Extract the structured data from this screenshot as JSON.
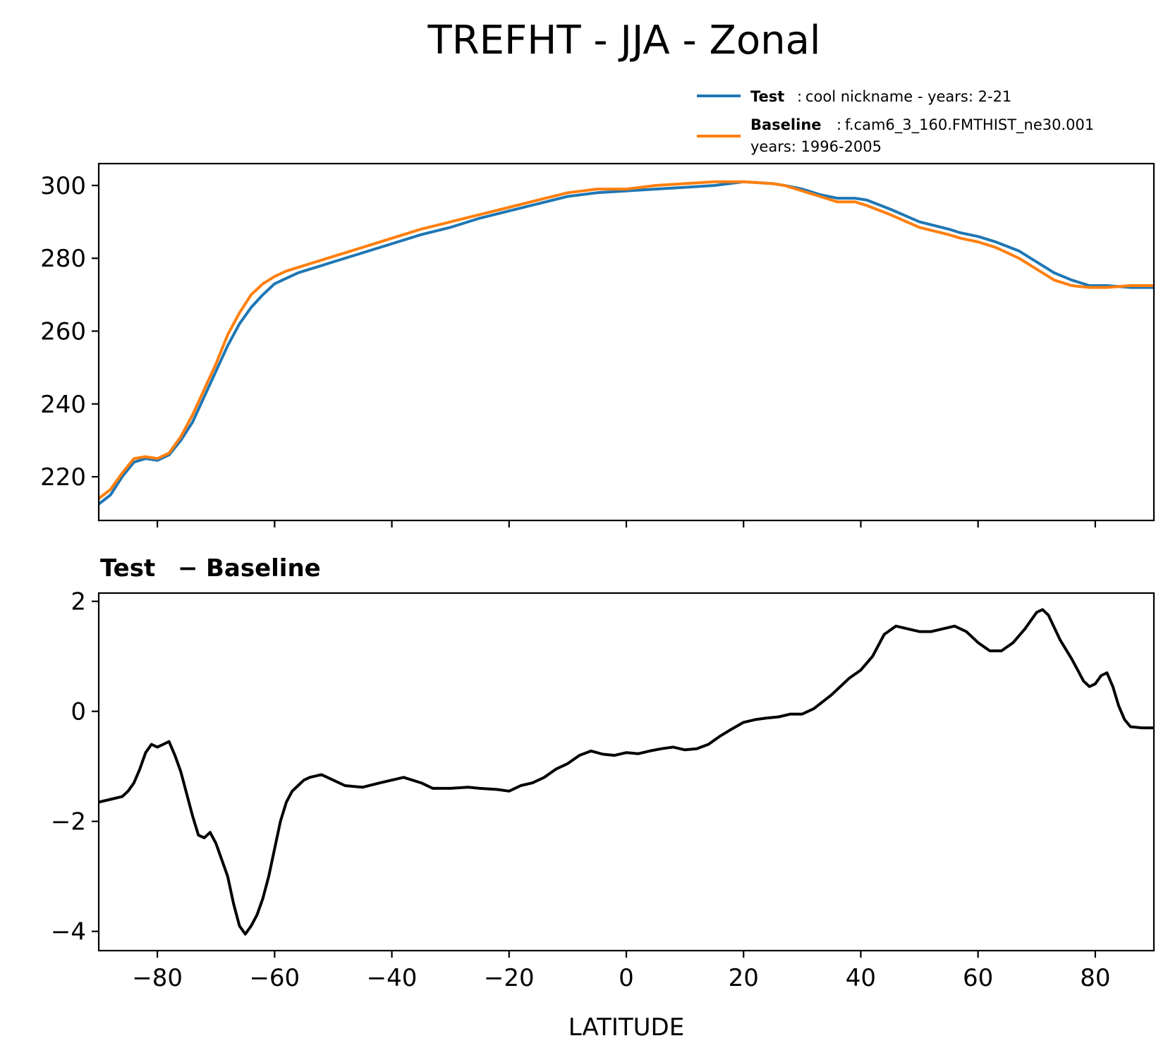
{
  "title": "TREFHT - JJA - Zonal",
  "legend": {
    "test_label": "Test",
    "test_desc": "cool nickname - years: 2-21",
    "baseline_label": "Baseline",
    "baseline_desc_line1": "f.cam6_3_160.FMTHIST_ne30.001",
    "baseline_desc_line2": "years: 1996-2005"
  },
  "diff_title_left": "Test",
  "diff_title_sep": "−",
  "diff_title_right": "Baseline",
  "xlabel": "LATITUDE",
  "colors": {
    "test": "#1f77b4",
    "baseline": "#ff7f0e",
    "diff": "#000000"
  },
  "chart_data": [
    {
      "type": "line",
      "panel": "top",
      "xlim": [
        -90,
        90
      ],
      "ylim": [
        208,
        306
      ],
      "yticks": [
        220,
        240,
        260,
        280,
        300
      ],
      "ytick_labels": [
        "220",
        "240",
        "260",
        "280",
        "300"
      ],
      "xticks": [
        -80,
        -60,
        -40,
        -20,
        0,
        20,
        40,
        60,
        80
      ],
      "series": [
        {
          "name": "Test",
          "x": [
            -90,
            -88,
            -86,
            -84,
            -82,
            -80,
            -78,
            -76,
            -74,
            -72,
            -70,
            -68,
            -66,
            -64,
            -62,
            -60,
            -58,
            -56,
            -54,
            -52,
            -50,
            -45,
            -40,
            -35,
            -30,
            -25,
            -20,
            -15,
            -10,
            -5,
            0,
            5,
            10,
            15,
            20,
            25,
            27,
            30,
            33,
            36,
            39,
            41,
            45,
            50,
            55,
            57,
            60,
            63,
            67,
            70,
            73,
            76,
            79,
            82,
            86,
            90
          ],
          "y": [
            212.5,
            215,
            220,
            224,
            225,
            224.5,
            226,
            230,
            235,
            242,
            249,
            256,
            262,
            266.5,
            270,
            273,
            274.5,
            276,
            277,
            278,
            279,
            281.5,
            284,
            286.5,
            288.5,
            291,
            293,
            295,
            297,
            298,
            298.5,
            299,
            299.5,
            300,
            301,
            300.5,
            300,
            299,
            297.5,
            296.5,
            296.5,
            296,
            293.5,
            290,
            288,
            287,
            286,
            284.5,
            282,
            279,
            276,
            274,
            272.5,
            272.5,
            272,
            272
          ]
        },
        {
          "name": "Baseline",
          "x": [
            -90,
            -88,
            -86,
            -84,
            -82,
            -80,
            -78,
            -76,
            -74,
            -72,
            -70,
            -68,
            -66,
            -64,
            -62,
            -60,
            -58,
            -56,
            -54,
            -52,
            -50,
            -45,
            -40,
            -35,
            -30,
            -25,
            -20,
            -15,
            -10,
            -5,
            0,
            5,
            10,
            15,
            20,
            25,
            27,
            30,
            33,
            36,
            39,
            41,
            45,
            50,
            55,
            57,
            60,
            63,
            67,
            70,
            73,
            76,
            79,
            82,
            86,
            90
          ],
          "y": [
            214,
            216.5,
            221,
            225,
            225.5,
            225,
            226.5,
            231,
            237,
            244,
            251,
            259,
            265,
            270,
            273,
            275,
            276.5,
            277.5,
            278.5,
            279.5,
            280.5,
            283,
            285.5,
            288,
            290,
            292,
            294,
            296,
            298,
            299,
            299,
            300,
            300.5,
            301,
            301,
            300.5,
            300,
            298.5,
            297,
            295.5,
            295.5,
            294.5,
            292,
            288.5,
            286.5,
            285.5,
            284.5,
            283,
            280,
            277,
            274,
            272.5,
            272,
            272,
            272.5,
            272.5
          ]
        }
      ]
    },
    {
      "type": "line",
      "panel": "bottom",
      "title": "Test − Baseline",
      "xlim": [
        -90,
        90
      ],
      "ylim": [
        -4.35,
        2.15
      ],
      "yticks": [
        -4,
        -2,
        0,
        2
      ],
      "ytick_labels": [
        "−4",
        "−2",
        "0",
        "2"
      ],
      "xticks": [
        -80,
        -60,
        -40,
        -20,
        0,
        20,
        40,
        60,
        80
      ],
      "xtick_labels": [
        "−80",
        "−60",
        "−40",
        "−20",
        "0",
        "20",
        "40",
        "60",
        "80"
      ],
      "xlabel": "LATITUDE",
      "series": [
        {
          "name": "Test − Baseline",
          "x": [
            -90,
            -88,
            -86,
            -85,
            -84,
            -83,
            -82,
            -81,
            -80,
            -79,
            -78,
            -77,
            -76,
            -75,
            -74,
            -73,
            -72,
            -71,
            -70,
            -69,
            -68,
            -67,
            -66,
            -65,
            -64,
            -63,
            -62,
            -61,
            -60,
            -59,
            -58,
            -57,
            -56,
            -55,
            -54,
            -52,
            -50,
            -48,
            -45,
            -42,
            -40,
            -38,
            -35,
            -33,
            -30,
            -27,
            -25,
            -22,
            -20,
            -18,
            -16,
            -14,
            -12,
            -10,
            -8,
            -6,
            -4,
            -2,
            0,
            2,
            4,
            6,
            8,
            10,
            12,
            14,
            16,
            18,
            20,
            22,
            24,
            26,
            28,
            30,
            32,
            35,
            38,
            40,
            42,
            44,
            46,
            48,
            50,
            52,
            54,
            56,
            58,
            60,
            62,
            64,
            66,
            68,
            70,
            71,
            72,
            74,
            76,
            77,
            78,
            79,
            80,
            81,
            82,
            83,
            84,
            85,
            86,
            88,
            90
          ],
          "y": [
            -1.65,
            -1.6,
            -1.55,
            -1.45,
            -1.3,
            -1.05,
            -0.75,
            -0.6,
            -0.65,
            -0.6,
            -0.55,
            -0.8,
            -1.1,
            -1.5,
            -1.9,
            -2.25,
            -2.3,
            -2.2,
            -2.4,
            -2.7,
            -3.0,
            -3.5,
            -3.9,
            -4.05,
            -3.9,
            -3.7,
            -3.4,
            -3.0,
            -2.5,
            -2.0,
            -1.65,
            -1.45,
            -1.35,
            -1.25,
            -1.2,
            -1.15,
            -1.25,
            -1.35,
            -1.38,
            -1.3,
            -1.25,
            -1.2,
            -1.3,
            -1.4,
            -1.4,
            -1.38,
            -1.4,
            -1.42,
            -1.45,
            -1.35,
            -1.3,
            -1.2,
            -1.05,
            -0.95,
            -0.8,
            -0.72,
            -0.78,
            -0.8,
            -0.75,
            -0.77,
            -0.72,
            -0.68,
            -0.65,
            -0.7,
            -0.68,
            -0.6,
            -0.45,
            -0.32,
            -0.2,
            -0.15,
            -0.12,
            -0.1,
            -0.05,
            -0.05,
            0.05,
            0.3,
            0.6,
            0.75,
            1.0,
            1.4,
            1.55,
            1.5,
            1.45,
            1.45,
            1.5,
            1.55,
            1.45,
            1.25,
            1.1,
            1.1,
            1.25,
            1.5,
            1.8,
            1.85,
            1.75,
            1.3,
            0.95,
            0.75,
            0.55,
            0.45,
            0.5,
            0.65,
            0.7,
            0.45,
            0.1,
            -0.15,
            -0.28,
            -0.3,
            -0.3
          ]
        }
      ]
    }
  ]
}
